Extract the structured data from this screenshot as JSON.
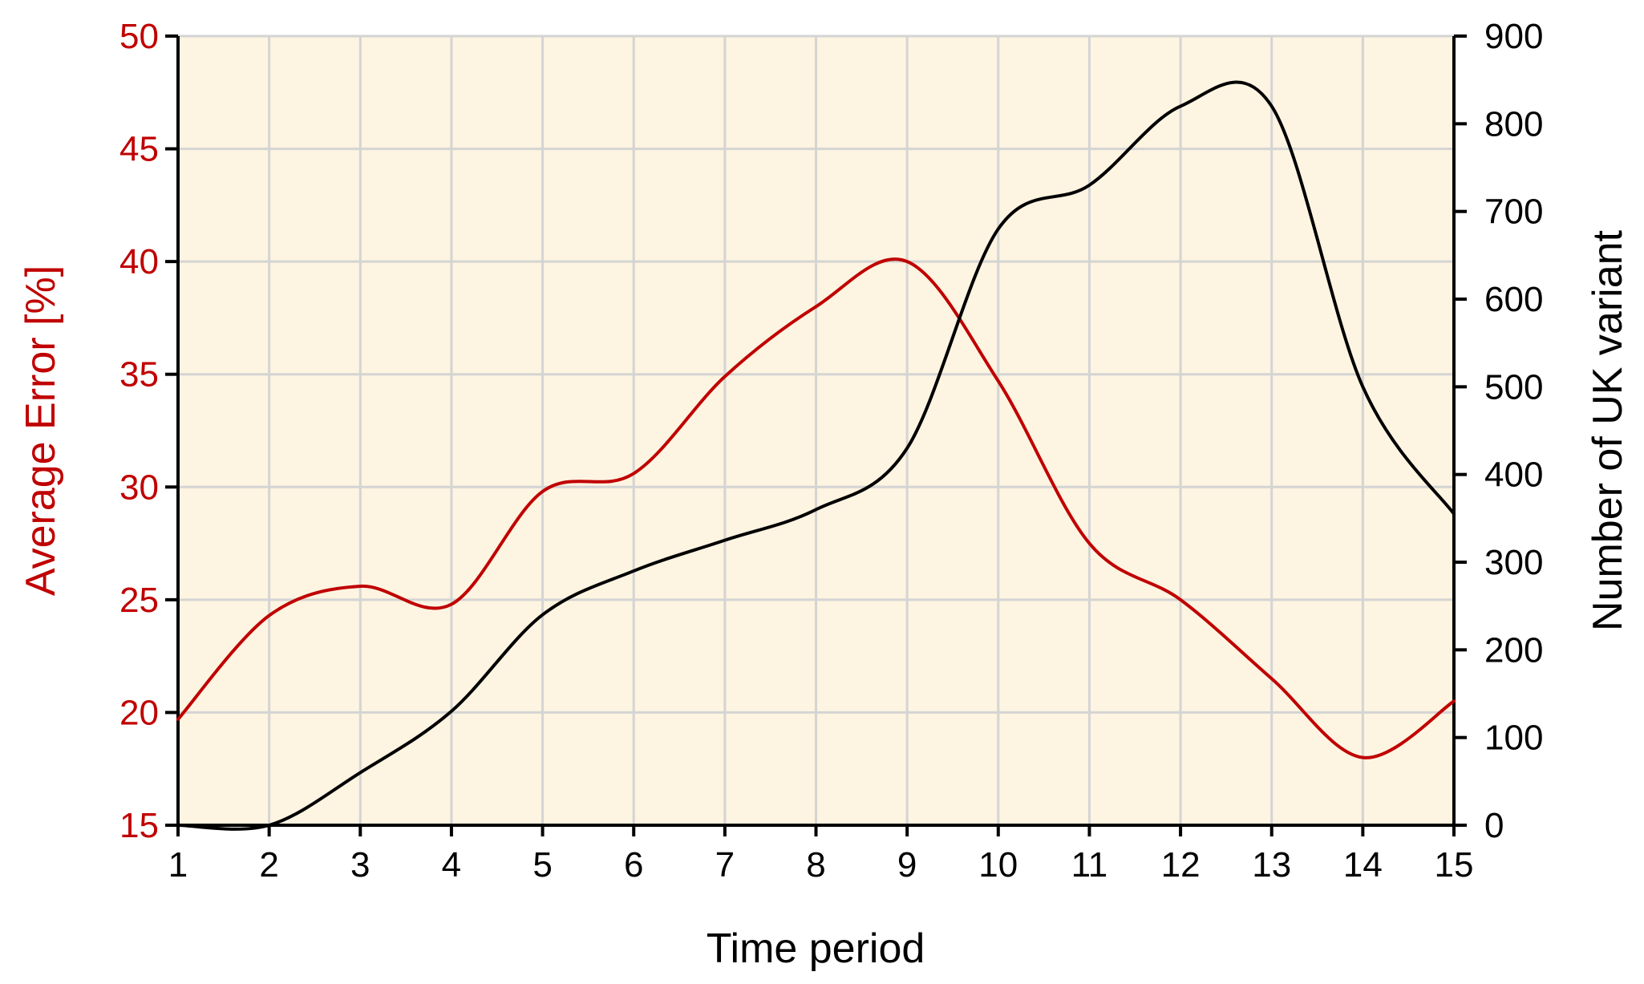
{
  "chart_data": {
    "type": "line",
    "title": "",
    "xlabel": "Time period",
    "ylabel_left": "Average Error [%]",
    "ylabel_right": "Number of UK variant",
    "x": [
      1,
      2,
      3,
      4,
      5,
      6,
      7,
      8,
      9,
      10,
      11,
      12,
      13,
      14,
      15
    ],
    "xlim": [
      1,
      15
    ],
    "ylim_left": [
      15,
      50
    ],
    "ylim_right": [
      0,
      900
    ],
    "y_ticks_left": [
      "15",
      "20",
      "25",
      "30",
      "35",
      "40",
      "45",
      "50"
    ],
    "y_ticks_right": [
      "0",
      "100",
      "200",
      "300",
      "400",
      "500",
      "600",
      "700",
      "800",
      "900"
    ],
    "x_ticks": [
      "1",
      "2",
      "3",
      "4",
      "5",
      "6",
      "7",
      "8",
      "9",
      "10",
      "11",
      "12",
      "13",
      "14",
      "15"
    ],
    "grid": true,
    "plot_background": "#fdf4e1",
    "grid_color": "#d4d4d4",
    "series": [
      {
        "axis": "left",
        "color": "#c00000",
        "values": [
          19.7,
          24.3,
          25.6,
          24.8,
          29.8,
          30.6,
          34.9,
          38.0,
          40.0,
          34.7,
          27.5,
          25.0,
          21.5,
          18.0,
          20.5
        ]
      },
      {
        "axis": "right",
        "color": "#000000",
        "values": [
          0,
          0,
          60,
          130,
          240,
          290,
          325,
          360,
          430,
          680,
          730,
          820,
          820,
          500,
          355
        ]
      }
    ]
  }
}
